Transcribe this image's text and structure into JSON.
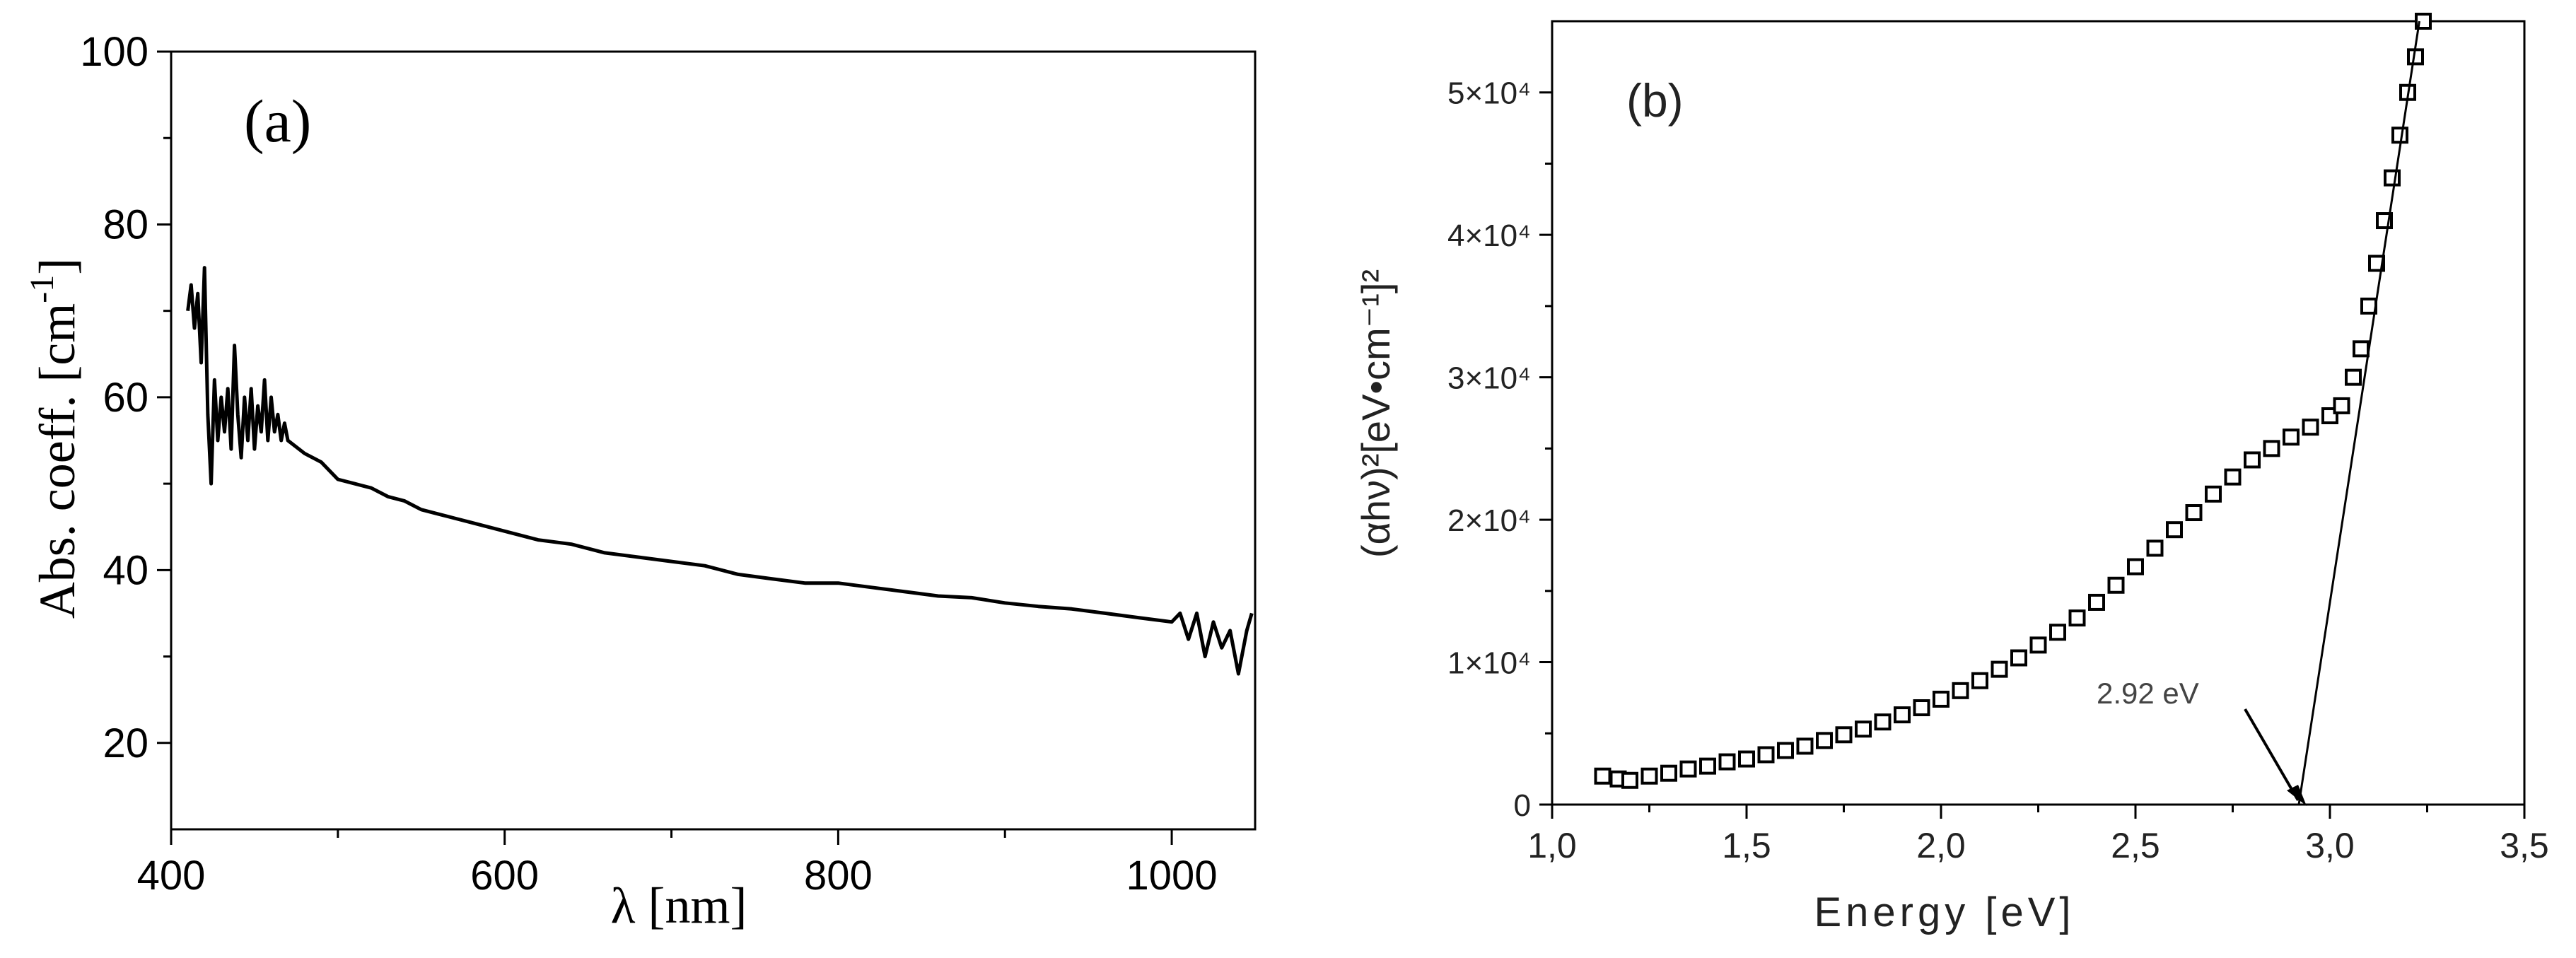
{
  "chart_data": [
    {
      "panel": "(a)",
      "type": "line",
      "xlabel": "λ [nm]",
      "ylabel": "Abs. coeff. [cm",
      "ylabel_sup": "-1",
      "ylabel_end": "]",
      "xlim": [
        400,
        1050
      ],
      "ylim": [
        10,
        100
      ],
      "xticks": [
        400,
        600,
        800,
        1000
      ],
      "yticks": [
        20,
        40,
        60,
        80,
        100
      ],
      "grid": false,
      "line_color": "#000000",
      "series": [
        {
          "x": [
            410,
            412,
            414,
            416,
            418,
            420,
            422,
            424,
            426,
            428,
            430,
            432,
            434,
            436,
            438,
            440,
            442,
            444,
            446,
            448,
            450,
            452,
            454,
            456,
            458,
            460,
            462,
            464,
            466,
            468,
            470,
            480,
            490,
            500,
            510,
            520,
            530,
            540,
            550,
            560,
            570,
            580,
            590,
            600,
            620,
            640,
            660,
            680,
            700,
            720,
            740,
            760,
            780,
            800,
            820,
            840,
            860,
            880,
            900,
            920,
            940,
            960,
            980,
            1000,
            1005,
            1010,
            1015,
            1020,
            1025,
            1030,
            1035,
            1040,
            1045,
            1048
          ],
          "y": [
            70,
            73,
            68,
            72,
            64,
            75,
            58,
            50,
            62,
            55,
            60,
            56,
            61,
            54,
            66,
            58,
            53,
            60,
            55,
            61,
            54,
            59,
            56,
            62,
            55,
            60,
            56,
            58,
            55,
            57,
            55,
            53.5,
            52.5,
            50.5,
            50,
            49.5,
            48.5,
            48,
            47,
            46.5,
            46,
            45.5,
            45,
            44.5,
            43.5,
            43,
            42,
            41.5,
            41,
            40.5,
            39.5,
            39,
            38.5,
            38.5,
            38,
            37.5,
            37,
            36.8,
            36.2,
            35.8,
            35.5,
            35,
            34.5,
            34,
            35,
            32,
            35,
            30,
            34,
            31,
            33,
            28,
            33,
            35
          ]
        }
      ]
    },
    {
      "panel": "(b)",
      "type": "scatter",
      "xlabel": "Energy [eV]",
      "ylabel": "(αhν)²[eV•cm⁻¹]²",
      "xlim": [
        1.0,
        3.5
      ],
      "ylim": [
        0,
        55000
      ],
      "xticks": [
        1.0,
        1.5,
        2.0,
        2.5,
        3.0,
        3.5
      ],
      "xtick_labels": [
        "1,0",
        "1,5",
        "2,0",
        "2,5",
        "3,0",
        "3,5"
      ],
      "yticks": [
        0,
        10000,
        20000,
        30000,
        40000,
        50000
      ],
      "ytick_labels": [
        "0",
        "1×10⁴",
        "2×10⁴",
        "3×10⁴",
        "4×10⁴",
        "5×10⁴"
      ],
      "grid": false,
      "marker": "open-square",
      "annotation": {
        "text": "2.92 eV",
        "x": 2.92,
        "y": 0
      },
      "fit_line": {
        "x": [
          2.92,
          3.23
        ],
        "y": [
          0,
          55000
        ]
      },
      "series": [
        {
          "x": [
            1.13,
            1.17,
            1.2,
            1.25,
            1.3,
            1.35,
            1.4,
            1.45,
            1.5,
            1.55,
            1.6,
            1.65,
            1.7,
            1.75,
            1.8,
            1.85,
            1.9,
            1.95,
            2.0,
            2.05,
            2.1,
            2.15,
            2.2,
            2.25,
            2.3,
            2.35,
            2.4,
            2.45,
            2.5,
            2.55,
            2.6,
            2.65,
            2.7,
            2.75,
            2.8,
            2.85,
            2.9,
            2.95,
            3.0,
            3.03,
            3.06,
            3.08,
            3.1,
            3.12,
            3.14,
            3.16,
            3.18,
            3.2,
            3.22,
            3.24
          ],
          "y": [
            2000,
            1800,
            1700,
            2000,
            2200,
            2500,
            2700,
            3000,
            3200,
            3500,
            3800,
            4100,
            4500,
            4900,
            5300,
            5800,
            6300,
            6800,
            7400,
            8000,
            8700,
            9500,
            10300,
            11200,
            12100,
            13100,
            14200,
            15400,
            16700,
            18000,
            19300,
            20500,
            21800,
            23000,
            24200,
            25000,
            25800,
            26500,
            27300,
            28000,
            30000,
            32000,
            35000,
            38000,
            41000,
            44000,
            47000,
            50000,
            52500,
            55000
          ]
        }
      ]
    }
  ]
}
